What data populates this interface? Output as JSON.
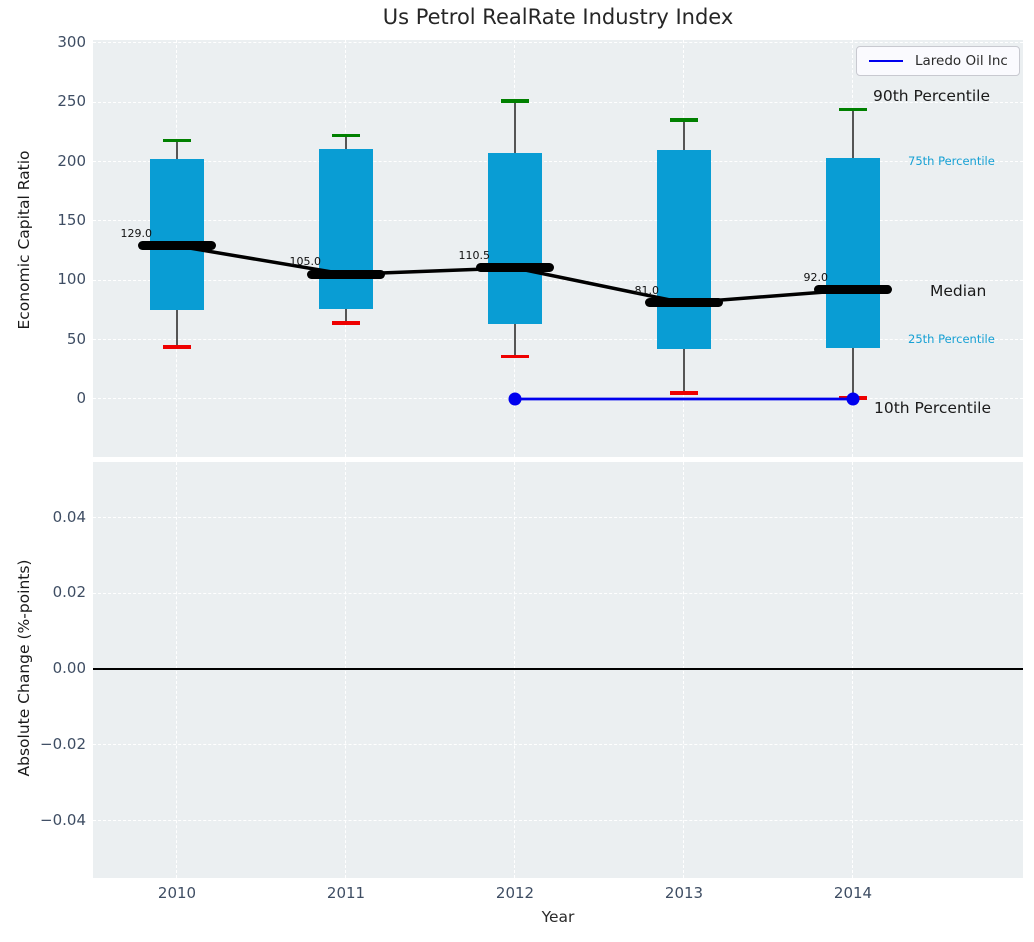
{
  "title": "Us Petrol RealRate Industry Index",
  "legend": {
    "label": "Laredo Oil Inc"
  },
  "colors": {
    "panel_bg": "#ebeff1",
    "grid": "#ffffff",
    "bar": "#099dd4",
    "cap_high_green": "#008000",
    "cap_low_red": "#ee0000",
    "median_black": "#000000",
    "series_blue": "#0000ee",
    "tick_label": "#3e4d63",
    "percentile_cyan": "#16a0d4",
    "text_dark": "#1a1a1a"
  },
  "chart_data": [
    {
      "type": "bar",
      "subtype": "percentile-box-bars",
      "title": "Us Petrol RealRate Industry Index",
      "xlabel": "Year",
      "ylabel": "Economic Capital Ratio",
      "ylim": [
        -50,
        303
      ],
      "yticks": [
        300,
        250,
        200,
        150,
        100,
        50,
        0
      ],
      "ytick_labels": [
        "300",
        "250",
        "200",
        "150",
        "100",
        "50",
        "0"
      ],
      "categories": [
        "2010",
        "2011",
        "2012",
        "2013",
        "2014"
      ],
      "grid": true,
      "series": [
        {
          "name": "90th Percentile",
          "values": [
            218,
            222,
            251,
            235,
            244
          ]
        },
        {
          "name": "75th Percentile",
          "values": [
            202,
            211,
            207,
            210,
            203
          ]
        },
        {
          "name": "Median",
          "values": [
            129.0,
            105.0,
            110.5,
            81.0,
            92.0
          ]
        },
        {
          "name": "25th Percentile",
          "values": [
            75,
            76,
            63,
            42,
            43
          ]
        },
        {
          "name": "10th Percentile",
          "values": [
            44,
            64,
            36,
            5,
            1
          ]
        }
      ],
      "median_labels": [
        "129.0",
        "105.0",
        "110.5",
        "81.0",
        "92.0"
      ],
      "overlay_series": {
        "name": "Laredo Oil Inc",
        "x": [
          "2012",
          "2014"
        ],
        "values": [
          0,
          0
        ],
        "marker": "circle"
      },
      "annotations": [
        "90th Percentile",
        "75th Percentile",
        "Median",
        "25th Percentile",
        "10th Percentile"
      ],
      "legend_position": "upper right"
    },
    {
      "type": "line",
      "xlabel": "Year",
      "ylabel": "Absolute Change (%-points)",
      "ylim": [
        -0.055,
        0.055
      ],
      "yticks": [
        0.04,
        0.02,
        0.0,
        -0.02,
        -0.04
      ],
      "ytick_labels": [
        "0.04",
        "0.02",
        "0.00",
        "−0.02",
        "−0.04"
      ],
      "categories": [
        "2010",
        "2011",
        "2012",
        "2013",
        "2014"
      ],
      "grid": true,
      "zero_line": 0.0,
      "series": []
    }
  ]
}
